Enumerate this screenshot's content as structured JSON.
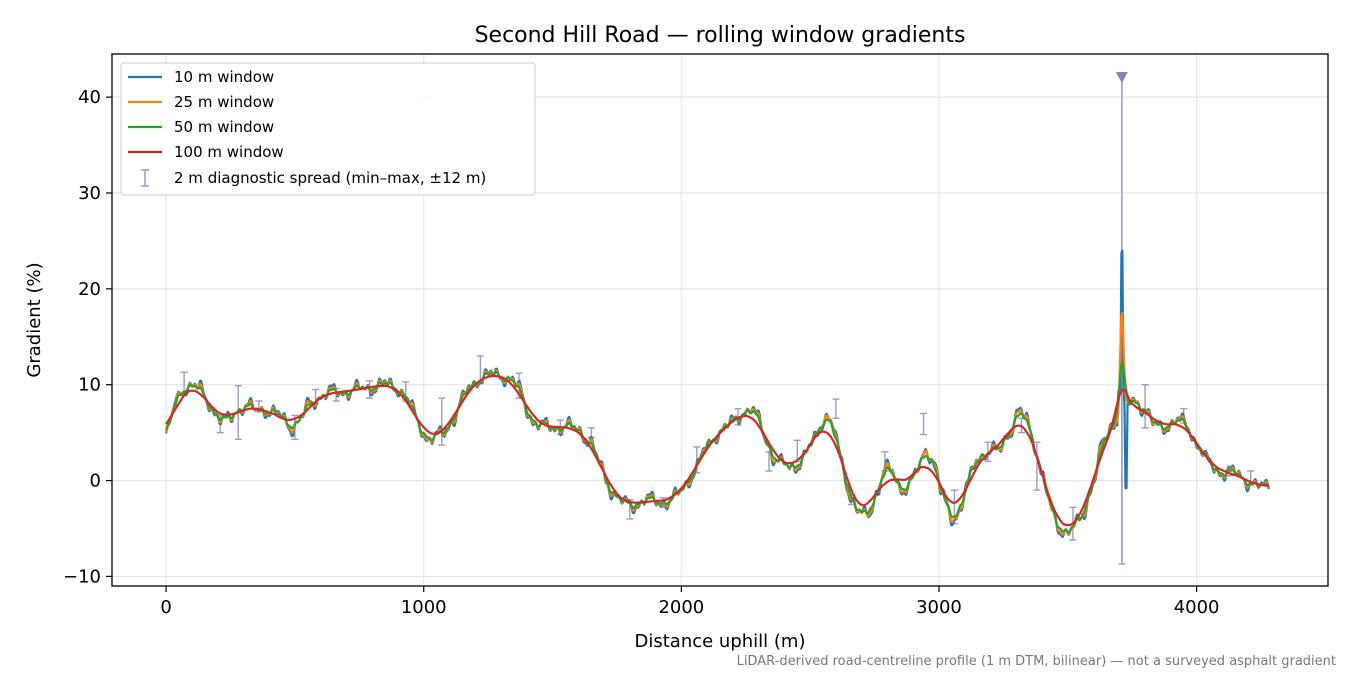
{
  "chart_data": {
    "type": "line",
    "title": "Second Hill Road — rolling window gradients",
    "xlabel": "Distance uphill (m)",
    "ylabel": "Gradient (%)",
    "xlim": [
      -210,
      4510
    ],
    "ylim": [
      -11,
      44.5
    ],
    "xticks": [
      0,
      1000,
      2000,
      3000,
      4000
    ],
    "xtick_labels": [
      "0",
      "1000",
      "2000",
      "3000",
      "4000"
    ],
    "yticks": [
      -10,
      0,
      10,
      20,
      30,
      40
    ],
    "ytick_labels": [
      "−10",
      "0",
      "10",
      "20",
      "30",
      "40"
    ],
    "grid": true,
    "legend_position": "upper-left",
    "footnote": "LiDAR-derived road-centreline profile (1 m DTM, bilinear) — not a surveyed asphalt gradient",
    "colors": {
      "w10": "#1f77b4",
      "w25": "#ff7f0e",
      "w50": "#2ca02c",
      "w100": "#d62728",
      "spread": "#9e9ac8",
      "marker": "#8c7fb8"
    },
    "series": [
      {
        "name": "10 m window",
        "key": "w10",
        "color": "#1f77b4"
      },
      {
        "name": "25 m window",
        "key": "w25",
        "color": "#ff7f0e"
      },
      {
        "name": "50 m window",
        "key": "w50",
        "color": "#2ca02c"
      },
      {
        "name": "100 m window",
        "key": "w100",
        "color": "#d62728"
      }
    ],
    "spread_label": "2 m diagnostic spread (min–max, ±12 m)",
    "base_profile": [
      [
        0,
        4.5
      ],
      [
        20,
        6.5
      ],
      [
        40,
        8.3
      ],
      [
        70,
        9.8
      ],
      [
        100,
        10.0
      ],
      [
        130,
        9.5
      ],
      [
        160,
        8.3
      ],
      [
        190,
        7.2
      ],
      [
        220,
        6.0
      ],
      [
        250,
        6.5
      ],
      [
        280,
        7.5
      ],
      [
        300,
        7.8
      ],
      [
        330,
        7.6
      ],
      [
        350,
        7.2
      ],
      [
        380,
        7.5
      ],
      [
        420,
        7.1
      ],
      [
        460,
        6.3
      ],
      [
        490,
        5.6
      ],
      [
        520,
        6.3
      ],
      [
        560,
        8.0
      ],
      [
        600,
        8.9
      ],
      [
        650,
        9.2
      ],
      [
        700,
        9.3
      ],
      [
        750,
        9.5
      ],
      [
        800,
        9.8
      ],
      [
        850,
        10.0
      ],
      [
        900,
        9.8
      ],
      [
        940,
        8.3
      ],
      [
        980,
        6.0
      ],
      [
        1010,
        4.5
      ],
      [
        1040,
        4.3
      ],
      [
        1080,
        5.0
      ],
      [
        1110,
        6.3
      ],
      [
        1150,
        8.3
      ],
      [
        1180,
        9.8
      ],
      [
        1220,
        10.8
      ],
      [
        1260,
        11.0
      ],
      [
        1300,
        11.0
      ],
      [
        1340,
        10.6
      ],
      [
        1370,
        9.5
      ],
      [
        1400,
        7.5
      ],
      [
        1430,
        6.0
      ],
      [
        1460,
        5.6
      ],
      [
        1500,
        5.6
      ],
      [
        1550,
        5.6
      ],
      [
        1600,
        5.4
      ],
      [
        1640,
        4.3
      ],
      [
        1680,
        2.0
      ],
      [
        1710,
        0.0
      ],
      [
        1740,
        -1.5
      ],
      [
        1780,
        -2.5
      ],
      [
        1820,
        -2.5
      ],
      [
        1860,
        -2.0
      ],
      [
        1900,
        -2.2
      ],
      [
        1940,
        -2.2
      ],
      [
        1980,
        -1.8
      ],
      [
        2020,
        -0.3
      ],
      [
        2060,
        1.5
      ],
      [
        2100,
        3.5
      ],
      [
        2140,
        5.0
      ],
      [
        2170,
        5.5
      ],
      [
        2200,
        6.0
      ],
      [
        2240,
        7.2
      ],
      [
        2270,
        7.5
      ],
      [
        2300,
        6.3
      ],
      [
        2330,
        4.3
      ],
      [
        2360,
        2.3
      ],
      [
        2400,
        1.5
      ],
      [
        2440,
        1.5
      ],
      [
        2480,
        2.5
      ],
      [
        2520,
        4.5
      ],
      [
        2560,
        7.0
      ],
      [
        2590,
        5.5
      ],
      [
        2620,
        2.0
      ],
      [
        2660,
        -1.8
      ],
      [
        2700,
        -3.8
      ],
      [
        2730,
        -3.5
      ],
      [
        2760,
        -1.0
      ],
      [
        2790,
        1.2
      ],
      [
        2820,
        0.8
      ],
      [
        2850,
        -0.8
      ],
      [
        2880,
        -0.6
      ],
      [
        2920,
        1.0
      ],
      [
        2950,
        3.5
      ],
      [
        2980,
        2.0
      ],
      [
        3010,
        -1.5
      ],
      [
        3050,
        -3.8
      ],
      [
        3080,
        -3.3
      ],
      [
        3110,
        -0.5
      ],
      [
        3150,
        2.5
      ],
      [
        3190,
        3.0
      ],
      [
        3230,
        3.0
      ],
      [
        3270,
        5.0
      ],
      [
        3310,
        7.0
      ],
      [
        3340,
        6.5
      ],
      [
        3370,
        4.0
      ],
      [
        3400,
        0.5
      ],
      [
        3440,
        -3.5
      ],
      [
        3480,
        -5.3
      ],
      [
        3520,
        -5.2
      ],
      [
        3560,
        -3.5
      ],
      [
        3600,
        0.0
      ],
      [
        3640,
        4.0
      ],
      [
        3670,
        5.8
      ],
      [
        3710,
        7.0
      ],
      [
        3740,
        8.0
      ],
      [
        3770,
        8.3
      ],
      [
        3800,
        7.5
      ],
      [
        3840,
        5.5
      ],
      [
        3880,
        5.7
      ],
      [
        3920,
        6.3
      ],
      [
        3960,
        5.8
      ],
      [
        4000,
        4.0
      ],
      [
        4040,
        2.0
      ],
      [
        4080,
        1.0
      ],
      [
        4140,
        0.8
      ],
      [
        4200,
        0.0
      ],
      [
        4250,
        -0.8
      ],
      [
        4280,
        -0.5
      ]
    ],
    "spike": {
      "x": 3710,
      "w10": 27.5,
      "w25": 17.5,
      "w50": 12.0,
      "w100": 9.5,
      "w10_min": -1.8
    },
    "spread_points": [
      [
        70,
        9.2,
        11.3
      ],
      [
        210,
        5.0,
        6.8
      ],
      [
        280,
        4.3,
        9.9
      ],
      [
        360,
        7.2,
        8.3
      ],
      [
        500,
        4.3,
        6.8
      ],
      [
        580,
        8.0,
        9.5
      ],
      [
        660,
        8.3,
        9.6
      ],
      [
        790,
        8.6,
        10.4
      ],
      [
        930,
        8.3,
        10.3
      ],
      [
        1070,
        3.7,
        8.6
      ],
      [
        1220,
        10.2,
        13.0
      ],
      [
        1370,
        8.6,
        11.2
      ],
      [
        1530,
        4.8,
        6.3
      ],
      [
        1650,
        4.5,
        5.5
      ],
      [
        1800,
        -4.0,
        -2.0
      ],
      [
        1930,
        -2.8,
        -1.8
      ],
      [
        2060,
        0.8,
        3.5
      ],
      [
        2220,
        5.8,
        7.5
      ],
      [
        2340,
        1.0,
        3.0
      ],
      [
        2450,
        2.0,
        4.2
      ],
      [
        2600,
        6.5,
        8.5
      ],
      [
        2660,
        -2.5,
        -1.5
      ],
      [
        2790,
        1.0,
        3.0
      ],
      [
        2940,
        4.8,
        7.0
      ],
      [
        3060,
        -4.5,
        -1.0
      ],
      [
        3190,
        2.0,
        4.0
      ],
      [
        3320,
        5.0,
        6.5
      ],
      [
        3380,
        -1.0,
        4.0
      ],
      [
        3520,
        -6.2,
        -2.8
      ],
      [
        3710,
        -8.7,
        10.0
      ],
      [
        3800,
        5.5,
        10.0
      ],
      [
        3950,
        6.0,
        7.5
      ],
      [
        4130,
        0.5,
        1.5
      ],
      [
        4210,
        -0.5,
        1.0
      ]
    ],
    "peak_marker": {
      "x": 3710,
      "y": 42
    }
  }
}
